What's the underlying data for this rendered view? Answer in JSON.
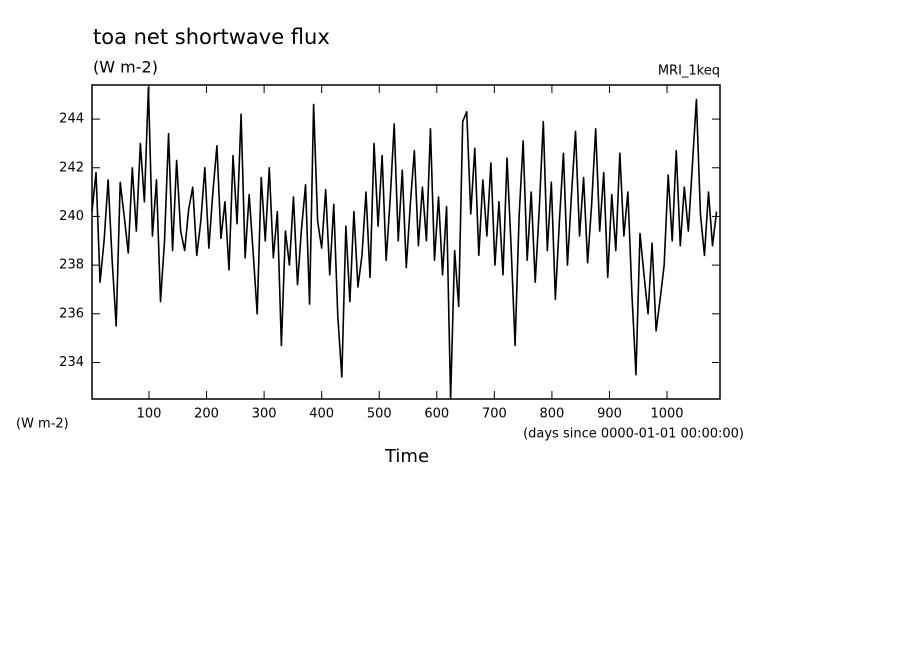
{
  "chart_data": {
    "type": "line",
    "title": "toa net shortwave flux",
    "subtitle": "(W m-2)",
    "annotation": "MRI_1keq",
    "y_label": "(W m-2)",
    "x_label": "Time",
    "x_units": "(days since 0000-01-01 00:00:00)",
    "color": "#000000",
    "xlim": [
      1,
      1092
    ],
    "ylim": [
      232.5,
      245.4
    ],
    "xticks": [
      100,
      200,
      300,
      400,
      500,
      600,
      700,
      800,
      900,
      1000
    ],
    "yticks": [
      234,
      236,
      238,
      240,
      242,
      244
    ],
    "x": [
      1,
      8,
      15,
      22,
      29,
      36,
      43,
      50,
      57,
      64,
      71,
      78,
      85,
      92,
      99,
      106,
      113,
      120,
      127,
      134,
      141,
      148,
      155,
      162,
      169,
      176,
      183,
      190,
      197,
      204,
      211,
      218,
      225,
      232,
      239,
      246,
      253,
      260,
      267,
      274,
      281,
      288,
      295,
      302,
      309,
      316,
      323,
      330,
      337,
      344,
      351,
      358,
      365,
      372,
      379,
      386,
      393,
      400,
      407,
      414,
      421,
      428,
      435,
      442,
      449,
      456,
      463,
      470,
      477,
      484,
      491,
      498,
      505,
      512,
      519,
      526,
      533,
      540,
      547,
      554,
      561,
      568,
      575,
      582,
      589,
      596,
      603,
      610,
      617,
      624,
      631,
      638,
      645,
      652,
      659,
      666,
      673,
      680,
      687,
      694,
      701,
      708,
      715,
      722,
      729,
      736,
      743,
      750,
      757,
      764,
      771,
      778,
      785,
      792,
      799,
      806,
      813,
      820,
      827,
      834,
      841,
      848,
      855,
      862,
      869,
      876,
      883,
      890,
      897,
      904,
      911,
      918,
      925,
      932,
      939,
      946,
      953,
      960,
      967,
      974,
      981,
      988,
      995,
      1002,
      1009,
      1016,
      1023,
      1030,
      1037,
      1044,
      1051,
      1058,
      1065,
      1072,
      1079,
      1086
    ],
    "values": [
      240.2,
      241.8,
      237.3,
      239.0,
      241.5,
      238.2,
      235.5,
      241.4,
      240.0,
      238.5,
      242.0,
      239.4,
      243.0,
      240.6,
      245.3,
      239.2,
      241.5,
      236.5,
      239.0,
      243.4,
      238.6,
      242.3,
      239.4,
      238.6,
      240.3,
      241.2,
      238.4,
      239.8,
      242.0,
      238.7,
      241.0,
      242.9,
      239.1,
      240.6,
      237.8,
      242.5,
      239.7,
      244.2,
      238.3,
      240.9,
      238.5,
      236.0,
      241.6,
      239.0,
      242.0,
      238.3,
      240.2,
      234.7,
      239.4,
      238.0,
      240.8,
      237.2,
      239.5,
      241.3,
      236.4,
      244.6,
      239.8,
      238.7,
      241.1,
      237.6,
      240.5,
      235.9,
      233.4,
      239.6,
      236.5,
      240.2,
      237.1,
      238.4,
      241.0,
      237.5,
      243.0,
      239.6,
      242.5,
      238.2,
      240.7,
      243.8,
      239.0,
      241.9,
      237.9,
      240.5,
      242.7,
      238.8,
      241.2,
      239.0,
      243.6,
      238.2,
      240.8,
      237.6,
      240.4,
      232.5,
      238.6,
      236.3,
      243.9,
      244.3,
      240.1,
      242.8,
      238.4,
      241.5,
      239.2,
      242.2,
      238.0,
      240.6,
      237.6,
      242.4,
      238.8,
      234.7,
      240.0,
      243.1,
      238.2,
      241.0,
      237.3,
      240.3,
      243.9,
      238.6,
      241.4,
      236.6,
      239.8,
      242.6,
      238.0,
      240.9,
      243.5,
      239.2,
      241.6,
      238.1,
      240.5,
      243.6,
      239.4,
      241.8,
      237.5,
      240.9,
      238.6,
      242.6,
      239.2,
      241.0,
      236.8,
      233.5,
      239.3,
      237.6,
      236.0,
      238.9,
      235.3,
      236.6,
      238.0,
      241.7,
      239.0,
      242.7,
      238.8,
      241.2,
      239.4,
      242.1,
      244.8,
      240.1,
      238.4,
      241.0,
      238.8,
      240.2
    ]
  }
}
